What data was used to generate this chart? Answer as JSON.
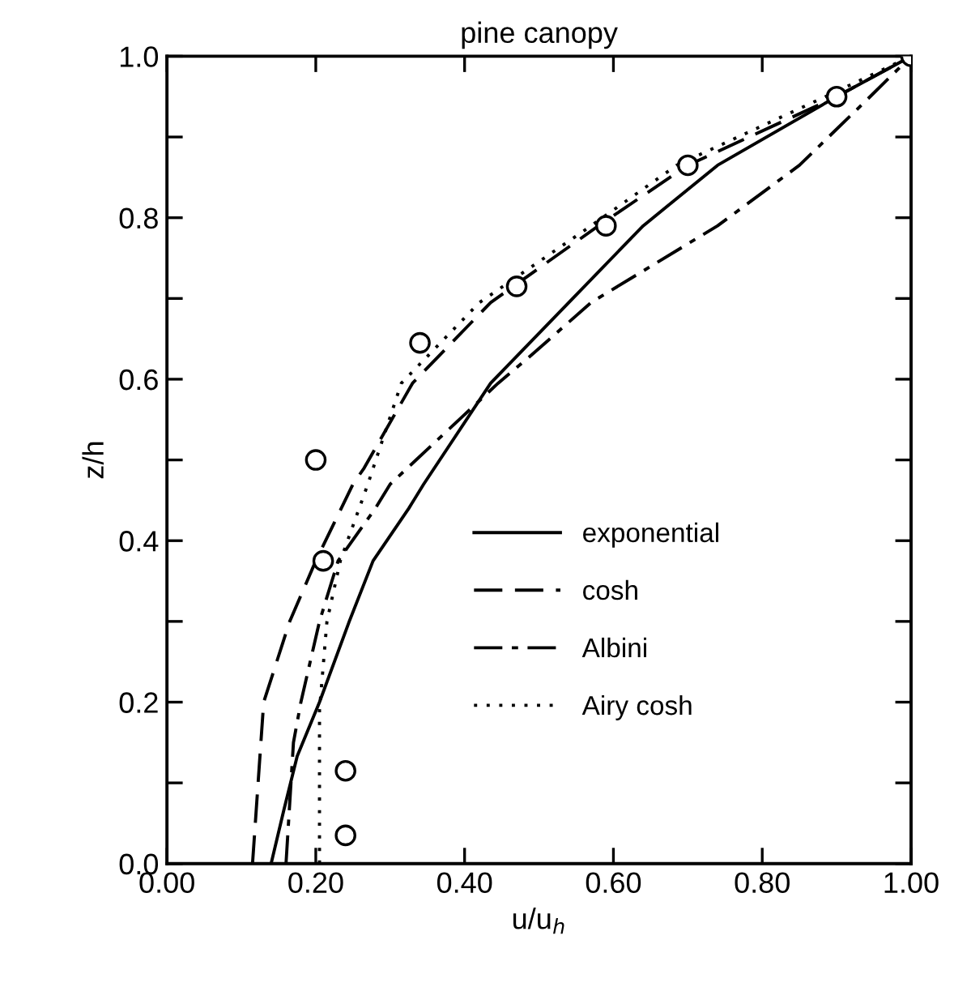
{
  "chart_data": {
    "type": "line",
    "title": "pine canopy",
    "xlabel": "u/u$_{h}$",
    "ylabel": "z/h",
    "xlim": [
      0,
      1
    ],
    "ylim": [
      0,
      1
    ],
    "xticks": [
      {
        "value": 0,
        "label": "0.00"
      },
      {
        "value": 0.2,
        "label": "0.20"
      },
      {
        "value": 0.4,
        "label": "0.40"
      },
      {
        "value": 0.6,
        "label": "0.60"
      },
      {
        "value": 0.8,
        "label": "0.80"
      },
      {
        "value": 1,
        "label": "1.00"
      }
    ],
    "yticks": [
      {
        "value": 0,
        "label": "0.0"
      },
      {
        "value": 0.1,
        "label": null
      },
      {
        "value": 0.2,
        "label": "0.2"
      },
      {
        "value": 0.3,
        "label": null
      },
      {
        "value": 0.4,
        "label": "0.4"
      },
      {
        "value": 0.5,
        "label": null
      },
      {
        "value": 0.6,
        "label": "0.6"
      },
      {
        "value": 0.7,
        "label": null
      },
      {
        "value": 0.8,
        "label": "0.8"
      },
      {
        "value": 0.9,
        "label": null
      },
      {
        "value": 1,
        "label": "1.0"
      }
    ],
    "grid": false,
    "legend": "center",
    "series": [
      {
        "name": "exponential",
        "color": "#000000",
        "line_style": "solid",
        "x": [
          0.14,
          0.157,
          0.175,
          0.205,
          0.245,
          0.277,
          0.325,
          0.345,
          0.435,
          0.54,
          0.64,
          0.74,
          0.9,
          1.0
        ],
        "values": [
          0,
          0.066,
          0.133,
          0.2,
          0.3,
          0.375,
          0.44,
          0.47,
          0.595,
          0.695,
          0.79,
          0.865,
          0.95,
          1.0
        ]
      },
      {
        "name": "cosh",
        "color": "#000000",
        "line_style": "dashed",
        "x": [
          0.115,
          0.13,
          0.165,
          0.2,
          0.25,
          0.265,
          0.33,
          0.435,
          0.58,
          0.7,
          0.9,
          1.0
        ],
        "values": [
          0,
          0.2,
          0.3,
          0.375,
          0.47,
          0.49,
          0.595,
          0.695,
          0.79,
          0.865,
          0.95,
          1.0
        ]
      },
      {
        "name": "Albini",
        "color": "#000000",
        "line_style": "dashdot",
        "x": [
          0.16,
          0.17,
          0.18,
          0.205,
          0.23,
          0.28,
          0.3,
          0.445,
          0.49,
          0.57,
          0.74,
          0.85,
          0.945,
          1.0
        ],
        "values": [
          0,
          0.15,
          0.2,
          0.3,
          0.375,
          0.44,
          0.47,
          0.595,
          0.63,
          0.695,
          0.79,
          0.865,
          0.95,
          1.0
        ]
      },
      {
        "name": "Airy cosh",
        "color": "#000000",
        "line_style": "dotted",
        "x": [
          0.205,
          0.205,
          0.215,
          0.233,
          0.27,
          0.315,
          0.42,
          0.57,
          0.685,
          0.885,
          1.0
        ],
        "values": [
          0,
          0.19,
          0.3,
          0.375,
          0.47,
          0.595,
          0.695,
          0.79,
          0.865,
          0.95,
          1.0
        ]
      },
      {
        "type": "scatter",
        "color": "#000000",
        "marker": "circle",
        "x": [
          1.0,
          0.9,
          0.7,
          0.59,
          0.47,
          0.34,
          0.2,
          0.21,
          0.24,
          0.24
        ],
        "values": [
          1.0,
          0.95,
          0.865,
          0.79,
          0.715,
          0.645,
          0.5,
          0.375,
          0.115,
          0.035
        ]
      }
    ]
  }
}
